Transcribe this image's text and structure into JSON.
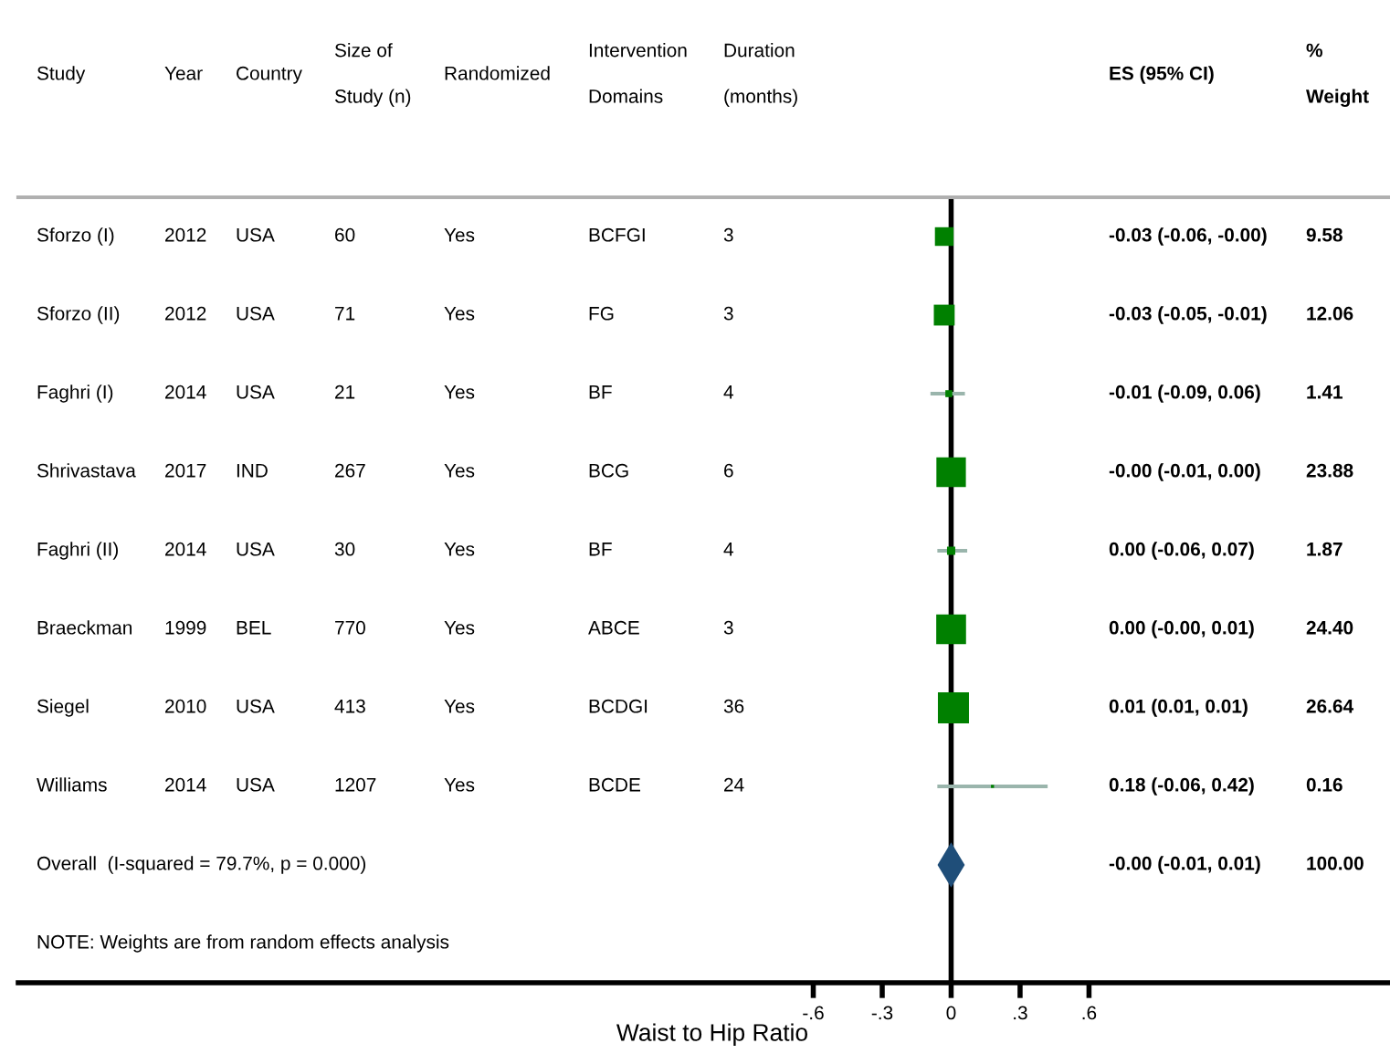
{
  "chart_data": [
    {
      "type": "other",
      "categories": [
        "Study",
        "Year",
        "Country",
        "Size of\nStudy (n)",
        "Randomized",
        "Intervention\nDomains",
        "Duration\n(months)"
      ],
      "cell_labels": [
        [
          "Sforzo (I)",
          "2012",
          "USA",
          "60",
          "Yes",
          "BCFGI",
          "3"
        ],
        [
          "Sforzo (II)",
          "2012",
          "USA",
          "71",
          "Yes",
          "FG",
          "3"
        ],
        [
          "Faghri (I)",
          "2014",
          "USA",
          "21",
          "Yes",
          "BF",
          "4"
        ],
        [
          "Shrivastava",
          "2017",
          "IND",
          "267",
          "Yes",
          "BCG",
          "6"
        ],
        [
          "Faghri (II)",
          "2014",
          "USA",
          "30",
          "Yes",
          "BF",
          "4"
        ],
        [
          "Braeckman",
          "1999",
          "BEL",
          "770",
          "Yes",
          "ABCE",
          "3"
        ],
        [
          "Siegel",
          "2010",
          "USA",
          "413",
          "Yes",
          "BCDGI",
          "36"
        ],
        [
          "Williams",
          "2014",
          "USA",
          "1207",
          "Yes",
          "BCDE",
          "24"
        ],
        [
          "Overall  (I-squared = 79.7%, p = 0.000)",
          null,
          null,
          null,
          null,
          null,
          null
        ]
      ],
      "annotations": [
        "NOTE: Weights are from random effects analysis"
      ]
    },
    {
      "type": "scatter",
      "orientation": "horizontal",
      "categories": [
        null,
        null,
        null,
        null,
        null,
        null,
        null,
        null,
        null,
        null
      ],
      "series": [
        {
          "color": "#008000",
          "marker": "square",
          "values": [
            -0.03,
            -0.03,
            -0.01,
            0,
            0,
            0,
            0.01,
            0.18,
            null,
            null
          ],
          "errors": [
            [
              -0.06,
              0
            ],
            [
              -0.05,
              -0.01
            ],
            [
              -0.09,
              0.06
            ],
            [
              -0.01,
              0
            ],
            [
              -0.06,
              0.07
            ],
            [
              0,
              0.01
            ],
            [
              0.01,
              0.01
            ],
            [
              -0.06,
              0.42
            ],
            null,
            null
          ],
          "sizes": [
            0.36,
            0.45,
            0.05,
            0.9,
            0.07,
            0.92,
            1,
            0.01,
            null,
            null
          ]
        },
        {
          "color": "#1f4e79",
          "marker": "diamond",
          "values": [
            null,
            null,
            null,
            null,
            null,
            null,
            null,
            null,
            0,
            null
          ],
          "errors": [
            null,
            null,
            null,
            null,
            null,
            null,
            null,
            null,
            [
              -0.01,
              0.01
            ],
            null
          ]
        }
      ],
      "xlim": [
        -4.06,
        1.91
      ],
      "xticks": [
        {
          "value": -0.6,
          "label": "-.6"
        },
        {
          "value": -0.3,
          "label": "-.3"
        },
        0,
        {
          "value": 0.3,
          "label": ".3"
        },
        {
          "value": 0.6,
          "label": ".6"
        }
      ],
      "xlabel": "Waist to Hip Ratio",
      "ref_lines": [
        {
          "axis": "x",
          "value": 0,
          "color": "#000000"
        }
      ],
      "grid": false
    },
    {
      "type": "other",
      "categories": [
        "ES (95% CI)",
        "%\nWeight"
      ],
      "cell_labels": [
        [
          "-0.03 (-0.06, -0.00)",
          "9.58"
        ],
        [
          "-0.03 (-0.05, -0.01)",
          "12.06"
        ],
        [
          "-0.01 (-0.09, 0.06)",
          "1.41"
        ],
        [
          "-0.00 (-0.01, 0.00)",
          "23.88"
        ],
        [
          "0.00 (-0.06, 0.07)",
          "1.87"
        ],
        [
          "0.00 (-0.00, 0.01)",
          "24.40"
        ],
        [
          "0.01 (0.01, 0.01)",
          "26.64"
        ],
        [
          "0.18 (-0.06, 0.42)",
          "0.16"
        ],
        [
          "-0.00 (-0.01, 0.01)",
          "100.00"
        ]
      ]
    }
  ]
}
